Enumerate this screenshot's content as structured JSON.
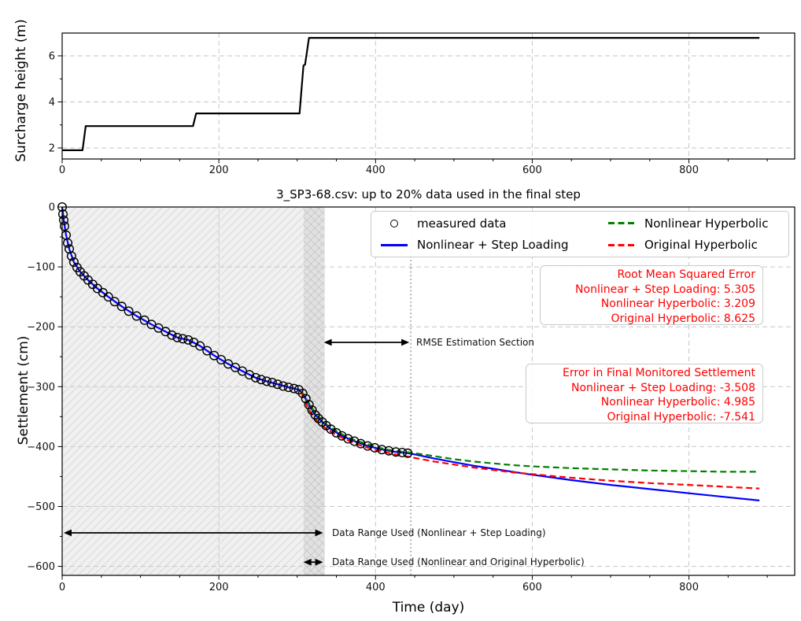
{
  "figure_title": "3_SP3-68.csv: up to 20% data used in the final step",
  "colors": {
    "measured": "#000000",
    "step_loading": "#0000ff",
    "nonlinear_hyperbolic": "#008000",
    "original_hyperbolic": "#ff0000",
    "grid": "#c6c6c6",
    "region_light": "#f0f0f0",
    "region_light_hatch": "#dadada",
    "region_dark": "#e2e2e2",
    "region_dark_hatch": "#cbcbcb",
    "annotation_text": "#ff0000"
  },
  "legend": {
    "items": [
      {
        "label": "measured data",
        "marker": "circle",
        "color": "#000000"
      },
      {
        "label": "Nonlinear + Step Loading",
        "marker": "solid",
        "color": "#0000ff"
      },
      {
        "label": "Nonlinear Hyperbolic",
        "marker": "dashed",
        "color": "#008000"
      },
      {
        "label": "Original Hyperbolic",
        "marker": "dashed",
        "color": "#ff0000"
      }
    ]
  },
  "rmse_box": {
    "title": "Root Mean Squared Error",
    "lines": [
      "Nonlinear + Step Loading: 5.305",
      "Nonlinear Hyperbolic: 3.209",
      "Original Hyperbolic: 8.625"
    ],
    "values": {
      "step_loading": 5.305,
      "nonlinear_hyperbolic": 3.209,
      "original_hyperbolic": 8.625
    }
  },
  "error_box": {
    "title": "Error in Final Monitored Settlement",
    "lines": [
      "Nonlinear + Step Loading: -3.508",
      "Nonlinear Hyperbolic: 4.985",
      "Original Hyperbolic: -7.541"
    ],
    "values": {
      "step_loading": -3.508,
      "nonlinear_hyperbolic": 4.985,
      "original_hyperbolic": -7.541
    }
  },
  "annotations": {
    "rmse_section": "RMSE Estimation Section",
    "range_step": "Data Range Used (Nonlinear + Step Loading)",
    "range_hyp": "Data Range Used (Nonlinear and Original Hyperbolic)"
  },
  "chart_data": [
    {
      "type": "line",
      "name": "surcharge-plot",
      "ylabel": "Surcharge height (m)",
      "xlim": [
        0,
        935
      ],
      "ylim": [
        1.52,
        6.99
      ],
      "xticks": [
        0,
        200,
        400,
        600,
        800
      ],
      "yticks": [
        2,
        4,
        6
      ],
      "grid": true,
      "series": [
        {
          "name": "Surcharge height",
          "color": "#000000",
          "style": "solid",
          "width": 2.2,
          "points": [
            [
              0,
              1.9
            ],
            [
              26,
              1.9
            ],
            [
              30,
              2.95
            ],
            [
              167,
              2.95
            ],
            [
              171,
              3.5
            ],
            [
              303,
              3.5
            ],
            [
              308,
              5.58
            ],
            [
              310,
              5.62
            ],
            [
              315,
              6.78
            ],
            [
              890,
              6.78
            ]
          ]
        }
      ]
    },
    {
      "type": "scatter+line",
      "name": "settlement-plot",
      "title": "3_SP3-68.csv: up to 20% data used in the final step",
      "xlabel": "Time (day)",
      "ylabel": "Settlement (cm)",
      "xlim": [
        0,
        935
      ],
      "ylim": [
        -615,
        0
      ],
      "xticks": [
        0,
        200,
        400,
        600,
        800
      ],
      "yticks": [
        0,
        -100,
        -200,
        -300,
        -400,
        -500,
        -600
      ],
      "grid": true,
      "legend_position": "upper right",
      "regions": [
        {
          "name": "data-range-step-loading",
          "x0": 0,
          "x1": 308,
          "fill": "#f0f0f0",
          "hatch": "diag"
        },
        {
          "name": "data-range-hyperbolic",
          "x0": 308,
          "x1": 335,
          "fill": "#e2e2e2",
          "hatch": "cross"
        }
      ],
      "vlines": [
        {
          "x": 445,
          "style": "dotted",
          "color": "#8f8f8f"
        }
      ],
      "series": [
        {
          "name": "measured data",
          "marker": "circle",
          "color": "#000000",
          "points": [
            [
              0,
              0
            ],
            [
              1,
              -12
            ],
            [
              2,
              -22
            ],
            [
              3,
              -32
            ],
            [
              5,
              -47
            ],
            [
              7,
              -60
            ],
            [
              9,
              -70
            ],
            [
              12,
              -82
            ],
            [
              15,
              -92
            ],
            [
              19,
              -101
            ],
            [
              23,
              -108
            ],
            [
              28,
              -115
            ],
            [
              33,
              -122
            ],
            [
              39,
              -129
            ],
            [
              45,
              -136
            ],
            [
              52,
              -143
            ],
            [
              59,
              -150
            ],
            [
              67,
              -158
            ],
            [
              76,
              -166
            ],
            [
              85,
              -174
            ],
            [
              95,
              -182
            ],
            [
              105,
              -189
            ],
            [
              114,
              -196
            ],
            [
              123,
              -202
            ],
            [
              132,
              -208
            ],
            [
              140,
              -214
            ],
            [
              147,
              -218
            ],
            [
              154,
              -220
            ],
            [
              161,
              -222
            ],
            [
              168,
              -226
            ],
            [
              176,
              -232
            ],
            [
              185,
              -240
            ],
            [
              194,
              -248
            ],
            [
              203,
              -255
            ],
            [
              212,
              -262
            ],
            [
              221,
              -268
            ],
            [
              230,
              -274
            ],
            [
              239,
              -280
            ],
            [
              247,
              -285
            ],
            [
              254,
              -288
            ],
            [
              261,
              -291
            ],
            [
              268,
              -293
            ],
            [
              275,
              -296
            ],
            [
              282,
              -299
            ],
            [
              289,
              -301
            ],
            [
              296,
              -303
            ],
            [
              302,
              -305
            ],
            [
              307,
              -311
            ],
            [
              311,
              -320
            ],
            [
              315,
              -330
            ],
            [
              319,
              -339
            ],
            [
              323,
              -347
            ],
            [
              327,
              -353
            ],
            [
              332,
              -359
            ],
            [
              337,
              -365
            ],
            [
              343,
              -371
            ],
            [
              350,
              -377
            ],
            [
              357,
              -382
            ],
            [
              365,
              -387
            ],
            [
              373,
              -391
            ],
            [
              381,
              -395
            ],
            [
              390,
              -399
            ],
            [
              399,
              -402
            ],
            [
              408,
              -405
            ],
            [
              417,
              -407
            ],
            [
              426,
              -409
            ],
            [
              434,
              -410
            ],
            [
              441,
              -411
            ]
          ]
        },
        {
          "name": "Nonlinear + Step Loading",
          "color": "#0000ff",
          "style": "solid",
          "width": 2.2,
          "points": [
            [
              0,
              0
            ],
            [
              2,
              -22
            ],
            [
              5,
              -47
            ],
            [
              9,
              -70
            ],
            [
              15,
              -92
            ],
            [
              23,
              -108
            ],
            [
              33,
              -122
            ],
            [
              45,
              -136
            ],
            [
              59,
              -150
            ],
            [
              76,
              -166
            ],
            [
              95,
              -182
            ],
            [
              114,
              -196
            ],
            [
              132,
              -208
            ],
            [
              147,
              -218
            ],
            [
              161,
              -222
            ],
            [
              176,
              -232
            ],
            [
              194,
              -248
            ],
            [
              212,
              -262
            ],
            [
              230,
              -274
            ],
            [
              247,
              -285
            ],
            [
              261,
              -291
            ],
            [
              275,
              -296
            ],
            [
              289,
              -301
            ],
            [
              302,
              -305
            ],
            [
              307,
              -311
            ],
            [
              315,
              -330
            ],
            [
              323,
              -347
            ],
            [
              332,
              -359
            ],
            [
              343,
              -371
            ],
            [
              357,
              -382
            ],
            [
              373,
              -391
            ],
            [
              390,
              -399
            ],
            [
              408,
              -405
            ],
            [
              426,
              -409
            ],
            [
              441,
              -411
            ],
            [
              450,
              -413
            ],
            [
              475,
              -420
            ],
            [
              500,
              -426
            ],
            [
              525,
              -432
            ],
            [
              550,
              -437
            ],
            [
              575,
              -442
            ],
            [
              600,
              -447
            ],
            [
              650,
              -456
            ],
            [
              700,
              -464
            ],
            [
              750,
              -471
            ],
            [
              800,
              -478
            ],
            [
              845,
              -484
            ],
            [
              890,
              -490
            ]
          ]
        },
        {
          "name": "Nonlinear Hyperbolic",
          "color": "#008000",
          "style": "dashed",
          "width": 2.2,
          "points": [
            [
              305,
              -307
            ],
            [
              310,
              -317
            ],
            [
              315,
              -328
            ],
            [
              320,
              -338
            ],
            [
              325,
              -347
            ],
            [
              330,
              -354
            ],
            [
              336,
              -362
            ],
            [
              343,
              -368
            ],
            [
              350,
              -374
            ],
            [
              358,
              -380
            ],
            [
              366,
              -385
            ],
            [
              375,
              -390
            ],
            [
              385,
              -394
            ],
            [
              395,
              -398
            ],
            [
              405,
              -402
            ],
            [
              415,
              -405
            ],
            [
              425,
              -407
            ],
            [
              435,
              -409
            ],
            [
              445,
              -410
            ],
            [
              460,
              -413
            ],
            [
              475,
              -416
            ],
            [
              500,
              -421
            ],
            [
              525,
              -425
            ],
            [
              550,
              -428
            ],
            [
              575,
              -431
            ],
            [
              600,
              -433
            ],
            [
              650,
              -436
            ],
            [
              700,
              -438
            ],
            [
              750,
              -440
            ],
            [
              800,
              -441
            ],
            [
              845,
              -442
            ],
            [
              890,
              -442
            ]
          ]
        },
        {
          "name": "Original Hyperbolic",
          "color": "#ff0000",
          "style": "dashed",
          "width": 2.2,
          "points": [
            [
              305,
              -309
            ],
            [
              309,
              -321
            ],
            [
              313,
              -333
            ],
            [
              317,
              -343
            ],
            [
              321,
              -351
            ],
            [
              326,
              -358
            ],
            [
              331,
              -364
            ],
            [
              337,
              -370
            ],
            [
              344,
              -376
            ],
            [
              352,
              -382
            ],
            [
              360,
              -387
            ],
            [
              369,
              -392
            ],
            [
              378,
              -397
            ],
            [
              388,
              -401
            ],
            [
              398,
              -405
            ],
            [
              408,
              -408
            ],
            [
              418,
              -411
            ],
            [
              428,
              -414
            ],
            [
              438,
              -416
            ],
            [
              450,
              -419
            ],
            [
              475,
              -425
            ],
            [
              500,
              -430
            ],
            [
              525,
              -435
            ],
            [
              550,
              -439
            ],
            [
              575,
              -443
            ],
            [
              600,
              -446
            ],
            [
              650,
              -452
            ],
            [
              700,
              -457
            ],
            [
              750,
              -461
            ],
            [
              800,
              -464
            ],
            [
              845,
              -467
            ],
            [
              890,
              -470
            ]
          ]
        }
      ],
      "annotations": [
        {
          "name": "rmse-section",
          "label": "RMSE Estimation Section",
          "arrow": {
            "x0": 334,
            "x1": 443,
            "y": -226
          }
        },
        {
          "name": "range-step-loading",
          "label": "Data Range Used (Nonlinear + Step Loading)",
          "arrow": {
            "x0": 2,
            "x1": 333,
            "y": -544
          }
        },
        {
          "name": "range-hyperbolic",
          "label": "Data Range Used (Nonlinear and Original Hyperbolic)",
          "arrow": {
            "x0": 308,
            "x1": 333,
            "y": -593
          }
        }
      ]
    }
  ]
}
